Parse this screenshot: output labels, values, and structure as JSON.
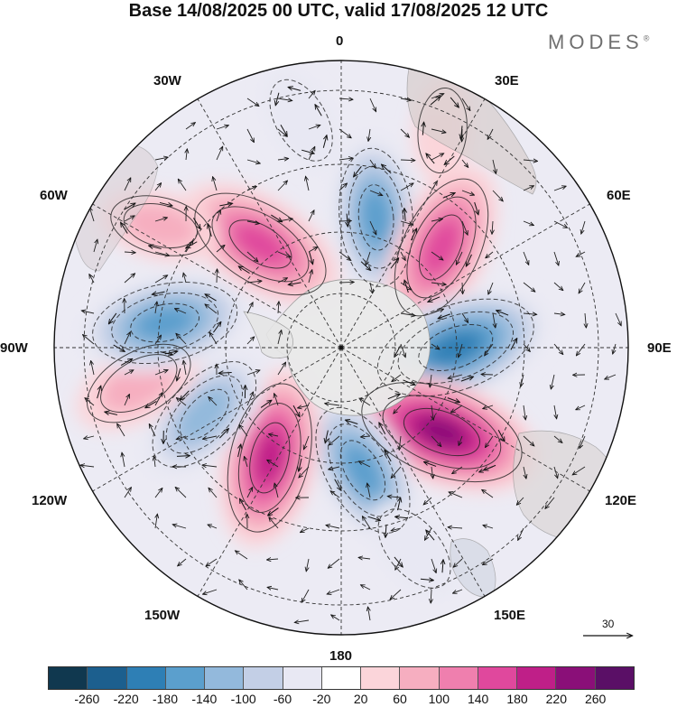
{
  "title": "Base 14/08/2025 00 UTC, valid 17/08/2025 12 UTC",
  "brand": "MODES",
  "brand_mark": "®",
  "longitude_labels": {
    "lon_0": "0",
    "lon_30e": "30E",
    "lon_60e": "60E",
    "lon_90e": "90E",
    "lon_120e": "120E",
    "lon_150e": "150E",
    "lon_180": "180",
    "lon_150w": "150W",
    "lon_120w": "120W",
    "lon_90w": "90W",
    "lon_60w": "60W",
    "lon_30w": "30W"
  },
  "reference_vector": "30",
  "colorbar": {
    "ticks": [
      "-260",
      "-220",
      "-180",
      "-140",
      "-100",
      "-60",
      "-20",
      "20",
      "60",
      "100",
      "140",
      "180",
      "220",
      "260"
    ],
    "colors": [
      "#10384f",
      "#1c5f8e",
      "#2e7fb5",
      "#5b9fcd",
      "#93b9dc",
      "#c3cfe6",
      "#e8e8f3",
      "#ffffff",
      "#fbd5da",
      "#f6aec0",
      "#ef7fae",
      "#e0489d",
      "#bf1f88",
      "#8a0f78",
      "#5a0f66"
    ]
  },
  "chart_data": {
    "type": "heatmap",
    "projection": "south polar stereographic",
    "title": "Base 14/08/2025 00 UTC, valid 17/08/2025 12 UTC",
    "variable_range": [
      -260,
      260
    ],
    "anomaly_centers": [
      {
        "longitude_deg": 15,
        "latitude_deg": -47,
        "value": -170
      },
      {
        "longitude_deg": 45,
        "latitude_deg": -45,
        "value": 190
      },
      {
        "longitude_deg": 90,
        "latitude_deg": -53,
        "value": -230
      },
      {
        "longitude_deg": 130,
        "latitude_deg": -48,
        "value": 240
      },
      {
        "longitude_deg": 170,
        "latitude_deg": -50,
        "value": -170
      },
      {
        "longitude_deg": -147,
        "latitude_deg": -48,
        "value": 200
      },
      {
        "longitude_deg": -116,
        "latitude_deg": -42,
        "value": -150
      },
      {
        "longitude_deg": -100,
        "latitude_deg": -28,
        "value": 110
      },
      {
        "longitude_deg": -82,
        "latitude_deg": -35,
        "value": -190
      },
      {
        "longitude_deg": -38,
        "latitude_deg": -48,
        "value": 190
      },
      {
        "longitude_deg": -56,
        "latitude_deg": -25,
        "value": 80
      },
      {
        "longitude_deg": -10,
        "latitude_deg": -22,
        "value": -50
      },
      {
        "longitude_deg": 160,
        "latitude_deg": -26,
        "value": -60
      },
      {
        "longitude_deg": 25,
        "latitude_deg": -20,
        "value": 40
      }
    ]
  }
}
